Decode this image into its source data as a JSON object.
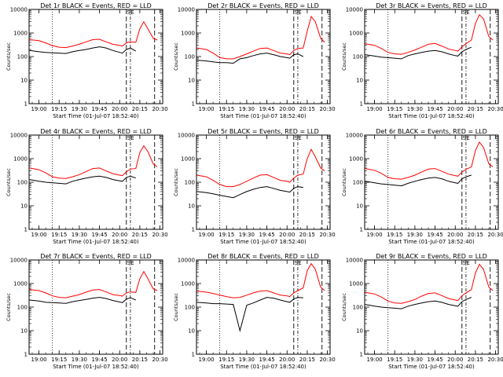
{
  "figure": {
    "colors": {
      "events": "#000000",
      "lld": "#ff0000",
      "frame": "#000000",
      "background": "#ffffff"
    }
  },
  "chart_data": [
    {
      "type": "line",
      "title": "Det 1r BLACK = Events, RED = LLD",
      "xlabel": "Start Time (01-Jul-07 18:52:40)",
      "ylabel": "Counts/sec",
      "yscale": "log",
      "grid": false,
      "xticks": [
        "19:00",
        "19:15",
        "19:30",
        "19:45",
        "20:00",
        "20:15",
        "20:30"
      ],
      "yticks": [
        "1",
        "10",
        "100",
        "1000",
        "10000"
      ],
      "annotation": "SE",
      "x": [
        "18:53",
        "19:00",
        "19:05",
        "19:10",
        "19:15",
        "19:20",
        "19:25",
        "19:30",
        "19:35",
        "19:40",
        "19:45",
        "19:50",
        "19:55",
        "20:00",
        "20:02",
        "20:05",
        "20:08",
        "20:12",
        "20:15",
        "20:18",
        "20:21",
        "20:25",
        "20:28"
      ],
      "series": [
        {
          "name": "Events",
          "values": [
            180,
            160,
            150,
            145,
            140,
            135,
            160,
            180,
            200,
            230,
            260,
            230,
            180,
            150,
            140,
            200,
            230,
            170,
            "",
            "",
            "",
            "",
            ""
          ]
        },
        {
          "name": "LLD",
          "values": [
            520,
            470,
            380,
            290,
            250,
            240,
            280,
            330,
            420,
            520,
            540,
            420,
            330,
            300,
            280,
            380,
            420,
            400,
            1500,
            3000,
            1500,
            600,
            500
          ]
        }
      ]
    },
    {
      "type": "line",
      "title": "Det 2r BLACK = Events, RED = LLD",
      "xlabel": "Start Time (01-Jul-07 18:52:40)",
      "ylabel": "Counts/sec",
      "yscale": "log",
      "grid": false,
      "xticks": [
        "19:00",
        "19:15",
        "19:30",
        "19:45",
        "20:00",
        "20:15",
        "20:30"
      ],
      "yticks": [
        "1",
        "10",
        "100",
        "1000",
        "10000"
      ],
      "annotation": "SE",
      "x": [
        "18:53",
        "19:00",
        "19:05",
        "19:10",
        "19:15",
        "19:20",
        "19:25",
        "19:30",
        "19:35",
        "19:40",
        "19:45",
        "19:50",
        "19:55",
        "20:00",
        "20:02",
        "20:05",
        "20:08",
        "20:12",
        "20:15",
        "20:18",
        "20:21",
        "20:25",
        "20:28"
      ],
      "series": [
        {
          "name": "Events",
          "values": [
            70,
            65,
            60,
            55,
            55,
            52,
            80,
            90,
            110,
            130,
            140,
            120,
            100,
            90,
            85,
            120,
            130,
            100,
            "",
            "",
            "",
            "",
            ""
          ]
        },
        {
          "name": "LLD",
          "values": [
            230,
            200,
            140,
            90,
            80,
            80,
            100,
            130,
            170,
            220,
            230,
            180,
            140,
            130,
            120,
            180,
            220,
            230,
            1200,
            5000,
            3000,
            600,
            400
          ]
        }
      ]
    },
    {
      "type": "line",
      "title": "Det 3r BLACK = Events, RED = LLD",
      "xlabel": "Start Time (01-Jul-07 18:52:40)",
      "ylabel": "Counts/sec",
      "yscale": "log",
      "grid": false,
      "xticks": [
        "19:00",
        "19:15",
        "19:30",
        "19:45",
        "20:00",
        "20:15",
        "20:30"
      ],
      "yticks": [
        "1",
        "10",
        "100",
        "1000",
        "10000"
      ],
      "annotation": "SE",
      "x": [
        "18:53",
        "19:00",
        "19:05",
        "19:10",
        "19:15",
        "19:20",
        "19:25",
        "19:30",
        "19:35",
        "19:40",
        "19:45",
        "19:50",
        "19:55",
        "20:00",
        "20:02",
        "20:05",
        "20:08",
        "20:12",
        "20:15",
        "20:18",
        "20:21",
        "20:25",
        "20:28"
      ],
      "series": [
        {
          "name": "Events",
          "values": [
            120,
            105,
            95,
            90,
            85,
            80,
            110,
            130,
            150,
            170,
            180,
            160,
            130,
            110,
            105,
            160,
            200,
            250,
            "",
            "",
            "",
            "",
            ""
          ]
        },
        {
          "name": "LLD",
          "values": [
            350,
            300,
            220,
            150,
            130,
            125,
            150,
            190,
            250,
            330,
            360,
            280,
            210,
            180,
            170,
            260,
            350,
            500,
            2500,
            6000,
            4000,
            700,
            500
          ]
        }
      ]
    },
    {
      "type": "line",
      "title": "Det 4r BLACK = Events, RED = LLD",
      "xlabel": "Start Time (01-Jul-07 18:52:40)",
      "ylabel": "Counts/sec",
      "yscale": "log",
      "grid": false,
      "xticks": [
        "19:00",
        "19:15",
        "19:30",
        "19:45",
        "20:00",
        "20:15",
        "20:30"
      ],
      "yticks": [
        "1",
        "10",
        "100",
        "1000",
        "10000"
      ],
      "annotation": "SE",
      "x": [
        "18:53",
        "19:00",
        "19:05",
        "19:10",
        "19:15",
        "19:20",
        "19:25",
        "19:30",
        "19:35",
        "19:40",
        "19:45",
        "19:50",
        "19:55",
        "20:00",
        "20:02",
        "20:05",
        "20:08",
        "20:12",
        "20:15",
        "20:18",
        "20:21",
        "20:25",
        "20:28"
      ],
      "series": [
        {
          "name": "Events",
          "values": [
            130,
            110,
            100,
            95,
            90,
            85,
            110,
            130,
            150,
            170,
            180,
            160,
            130,
            115,
            110,
            160,
            180,
            150,
            "",
            "",
            "",
            "",
            ""
          ]
        },
        {
          "name": "LLD",
          "values": [
            400,
            340,
            250,
            170,
            150,
            145,
            170,
            210,
            280,
            380,
            400,
            300,
            230,
            200,
            190,
            280,
            360,
            380,
            1800,
            3500,
            2000,
            600,
            450
          ]
        }
      ]
    },
    {
      "type": "line",
      "title": "Det 5r BLACK = Events, RED = LLD",
      "xlabel": "Start Time (01-Jul-07 18:52:40)",
      "ylabel": "Counts/sec",
      "yscale": "log",
      "grid": false,
      "xticks": [
        "19:00",
        "19:15",
        "19:30",
        "19:45",
        "20:00",
        "20:15",
        "20:30"
      ],
      "yticks": [
        "1",
        "10",
        "100",
        "1000",
        "10000"
      ],
      "annotation": "SE",
      "x": [
        "18:53",
        "19:00",
        "19:05",
        "19:10",
        "19:15",
        "19:20",
        "19:25",
        "19:30",
        "19:35",
        "19:40",
        "19:45",
        "19:50",
        "19:55",
        "20:00",
        "20:02",
        "20:05",
        "20:08",
        "20:12",
        "20:15",
        "20:18",
        "20:21",
        "20:25",
        "20:28"
      ],
      "series": [
        {
          "name": "Events",
          "values": [
            40,
            36,
            32,
            28,
            25,
            22,
            30,
            40,
            50,
            60,
            65,
            55,
            45,
            40,
            38,
            55,
            65,
            60,
            "",
            "",
            "",
            "",
            ""
          ]
        },
        {
          "name": "LLD",
          "values": [
            200,
            170,
            120,
            80,
            65,
            65,
            80,
            110,
            150,
            200,
            210,
            160,
            120,
            110,
            100,
            150,
            200,
            220,
            1000,
            2500,
            1200,
            400,
            300
          ]
        }
      ]
    },
    {
      "type": "line",
      "title": "Det 6r BLACK = Events, RED = LLD",
      "xlabel": "Start Time (01-Jul-07 18:52:40)",
      "ylabel": "Counts/sec",
      "yscale": "log",
      "grid": false,
      "xticks": [
        "19:00",
        "19:15",
        "19:30",
        "19:45",
        "20:00",
        "20:15",
        "20:30"
      ],
      "yticks": [
        "1",
        "10",
        "100",
        "1000",
        "10000"
      ],
      "annotation": "SE",
      "x": [
        "18:53",
        "19:00",
        "19:05",
        "19:10",
        "19:15",
        "19:20",
        "19:25",
        "19:30",
        "19:35",
        "19:40",
        "19:45",
        "19:50",
        "19:55",
        "20:00",
        "20:02",
        "20:05",
        "20:08",
        "20:12",
        "20:15",
        "20:18",
        "20:21",
        "20:25",
        "20:28"
      ],
      "series": [
        {
          "name": "Events",
          "values": [
            110,
            95,
            85,
            80,
            75,
            70,
            90,
            110,
            130,
            150,
            160,
            140,
            110,
            95,
            90,
            140,
            170,
            200,
            "",
            "",
            "",
            "",
            ""
          ]
        },
        {
          "name": "LLD",
          "values": [
            380,
            320,
            240,
            160,
            140,
            135,
            160,
            200,
            270,
            360,
            380,
            290,
            220,
            190,
            180,
            270,
            350,
            450,
            2200,
            5000,
            3000,
            600,
            450
          ]
        }
      ]
    },
    {
      "type": "line",
      "title": "Det 7r BLACK = Events, RED = LLD",
      "xlabel": "Start Time (01-Jul-07 18:52:40)",
      "ylabel": "Counts/sec",
      "yscale": "log",
      "grid": false,
      "xticks": [
        "19:00",
        "19:15",
        "19:30",
        "19:45",
        "20:00",
        "20:15",
        "20:30"
      ],
      "yticks": [
        "1",
        "10",
        "100",
        "1000",
        "10000"
      ],
      "annotation": "SE",
      "x": [
        "18:53",
        "19:00",
        "19:05",
        "19:10",
        "19:15",
        "19:20",
        "19:25",
        "19:30",
        "19:35",
        "19:40",
        "19:45",
        "19:50",
        "19:55",
        "20:00",
        "20:02",
        "20:05",
        "20:08",
        "20:12",
        "20:15",
        "20:18",
        "20:21",
        "20:25",
        "20:28"
      ],
      "series": [
        {
          "name": "Events",
          "values": [
            200,
            180,
            160,
            155,
            150,
            145,
            170,
            190,
            210,
            240,
            260,
            230,
            190,
            165,
            155,
            220,
            250,
            200,
            "",
            "",
            "",
            "",
            ""
          ]
        },
        {
          "name": "LLD",
          "values": [
            560,
            500,
            400,
            300,
            260,
            250,
            290,
            340,
            430,
            530,
            560,
            440,
            340,
            310,
            290,
            400,
            440,
            420,
            1600,
            3200,
            1600,
            600,
            500
          ]
        }
      ]
    },
    {
      "type": "line",
      "title": "Det 8r BLACK = Events, RED = LLD",
      "xlabel": "Start Time (01-Jul-07 18:52:40)",
      "ylabel": "Counts/sec",
      "yscale": "log",
      "grid": false,
      "xticks": [
        "19:00",
        "19:15",
        "19:30",
        "19:45",
        "20:00",
        "20:15",
        "20:30"
      ],
      "yticks": [
        "1",
        "10",
        "100",
        "1000",
        "10000"
      ],
      "annotation": "SE",
      "x": [
        "18:53",
        "19:00",
        "19:05",
        "19:10",
        "19:15",
        "19:20",
        "19:25",
        "19:30",
        "19:35",
        "19:40",
        "19:45",
        "19:50",
        "19:55",
        "20:00",
        "20:02",
        "20:05",
        "20:08",
        "20:12",
        "20:15",
        "20:18",
        "20:21",
        "20:25",
        "20:28"
      ],
      "series": [
        {
          "name": "Events",
          "values": [
            160,
            150,
            140,
            140,
            135,
            130,
            10,
            120,
            150,
            200,
            260,
            240,
            200,
            170,
            160,
            220,
            260,
            250,
            "",
            "",
            "",
            "",
            ""
          ]
        },
        {
          "name": "LLD",
          "values": [
            480,
            430,
            380,
            320,
            280,
            250,
            260,
            320,
            400,
            480,
            500,
            400,
            320,
            300,
            280,
            400,
            500,
            650,
            3500,
            7000,
            4000,
            700,
            500
          ]
        }
      ]
    },
    {
      "type": "line",
      "title": "Det 9r BLACK = Events, RED = LLD",
      "xlabel": "Start Time (01-Jul-07 18:52:40)",
      "ylabel": "Counts/sec",
      "yscale": "log",
      "grid": false,
      "xticks": [
        "19:00",
        "19:15",
        "19:30",
        "19:45",
        "20:00",
        "20:15",
        "20:30"
      ],
      "yticks": [
        "1",
        "10",
        "100",
        "1000",
        "10000"
      ],
      "annotation": "SE",
      "x": [
        "18:53",
        "19:00",
        "19:05",
        "19:10",
        "19:15",
        "19:20",
        "19:25",
        "19:30",
        "19:35",
        "19:40",
        "19:45",
        "19:50",
        "19:55",
        "20:00",
        "20:02",
        "20:05",
        "20:08",
        "20:12",
        "20:15",
        "20:18",
        "20:21",
        "20:25",
        "20:28"
      ],
      "series": [
        {
          "name": "Events",
          "values": [
            130,
            110,
            100,
            95,
            90,
            85,
            110,
            130,
            150,
            170,
            180,
            160,
            130,
            115,
            110,
            170,
            210,
            260,
            "",
            "",
            "",
            "",
            ""
          ]
        },
        {
          "name": "LLD",
          "values": [
            420,
            360,
            270,
            180,
            150,
            145,
            170,
            210,
            290,
            380,
            400,
            310,
            230,
            200,
            190,
            300,
            400,
            550,
            2800,
            6500,
            4000,
            700,
            500
          ]
        }
      ]
    }
  ]
}
